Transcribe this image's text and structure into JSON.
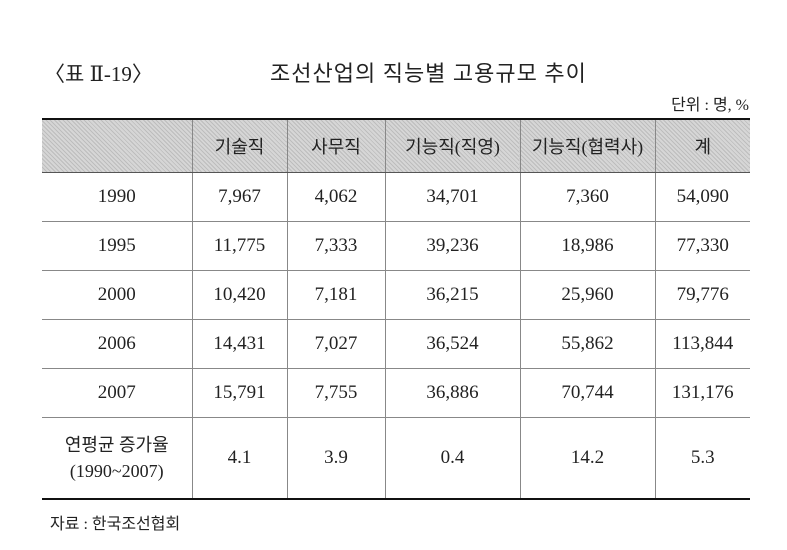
{
  "header": {
    "label": "〈표 Ⅱ-19〉",
    "title": "조선산업의 직능별 고용규모 추이",
    "unit": "단위 : 명, %"
  },
  "table": {
    "columns": [
      "기술직",
      "사무직",
      "기능직(직영)",
      "기능직(협력사)",
      "계"
    ],
    "rows": [
      {
        "year": "1990",
        "values": [
          "7,967",
          "4,062",
          "34,701",
          "7,360",
          "54,090"
        ]
      },
      {
        "year": "1995",
        "values": [
          "11,775",
          "7,333",
          "39,236",
          "18,986",
          "77,330"
        ]
      },
      {
        "year": "2000",
        "values": [
          "10,420",
          "7,181",
          "36,215",
          "25,960",
          "79,776"
        ]
      },
      {
        "year": "2006",
        "values": [
          "14,431",
          "7,027",
          "36,524",
          "55,862",
          "113,844"
        ]
      },
      {
        "year": "2007",
        "values": [
          "15,791",
          "7,755",
          "36,886",
          "70,744",
          "131,176"
        ]
      }
    ],
    "growth": {
      "label": [
        "연평균 증가율",
        "(1990~2007)"
      ],
      "values": [
        "4.1",
        "3.9",
        "0.4",
        "14.2",
        "5.3"
      ]
    }
  },
  "footer": {
    "source": "자료 : 한국조선협회"
  }
}
